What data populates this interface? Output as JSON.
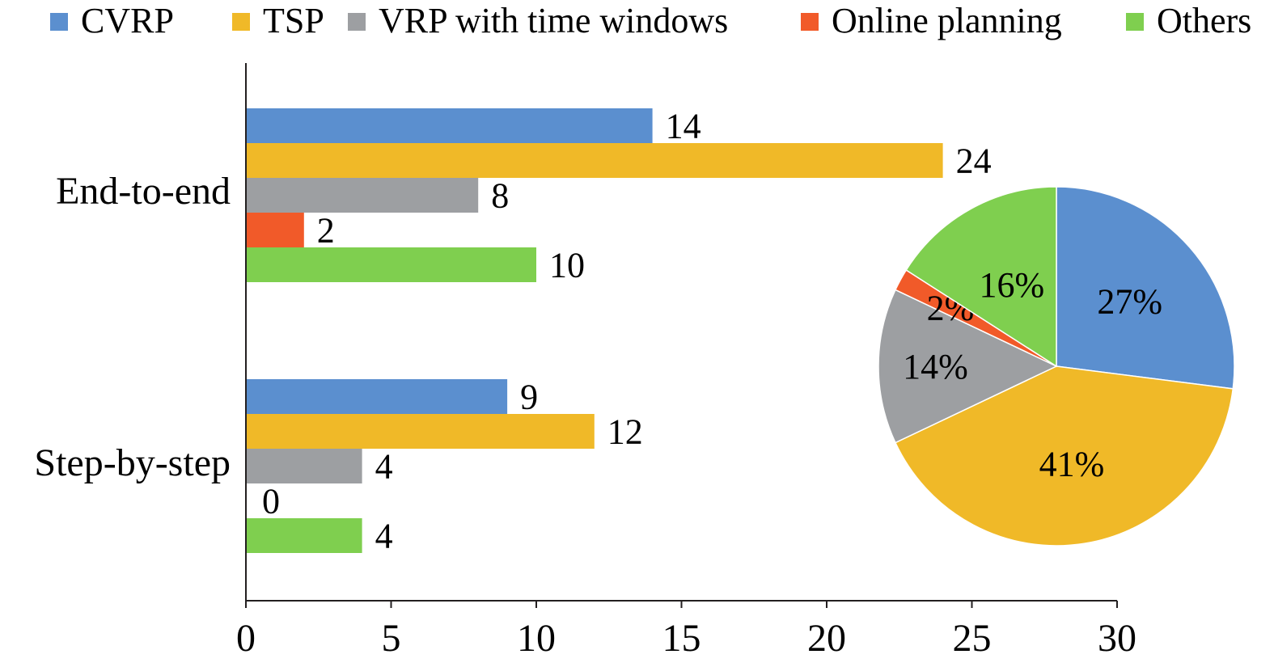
{
  "chart_data": [
    {
      "type": "bar",
      "orientation": "horizontal",
      "categories": [
        "End-to-end",
        "Step-by-step"
      ],
      "series": [
        {
          "name": "CVRP",
          "color": "#5b8fcf",
          "values": [
            14,
            9
          ]
        },
        {
          "name": "TSP",
          "color": "#f0b928",
          "values": [
            24,
            12
          ]
        },
        {
          "name": "VRP with time windows",
          "color": "#9d9fa2",
          "values": [
            8,
            4
          ]
        },
        {
          "name": "Online planning",
          "color": "#f15a29",
          "values": [
            2,
            0
          ]
        },
        {
          "name": "Others",
          "color": "#7fcf4f",
          "values": [
            10,
            4
          ]
        }
      ],
      "data_labels": [
        [
          "14",
          "24",
          "8",
          "2",
          "10"
        ],
        [
          "9",
          "12",
          "4",
          "0",
          "4"
        ]
      ],
      "xlim": [
        0,
        30
      ],
      "xticks": [
        "0",
        "5",
        "10",
        "15",
        "20",
        "25",
        "30"
      ],
      "grid": false,
      "legend": "top"
    },
    {
      "type": "pie",
      "slices": [
        {
          "name": "CVRP",
          "value": 27,
          "label": "27%",
          "color": "#5b8fcf"
        },
        {
          "name": "TSP",
          "value": 41,
          "label": "41%",
          "color": "#f0b928"
        },
        {
          "name": "VRP with time windows",
          "value": 14,
          "label": "14%",
          "color": "#9d9fa2"
        },
        {
          "name": "Online planning",
          "value": 2,
          "label": "2%",
          "color": "#f15a29"
        },
        {
          "name": "Others",
          "value": 16,
          "label": "16%",
          "color": "#7fcf4f"
        }
      ]
    }
  ]
}
